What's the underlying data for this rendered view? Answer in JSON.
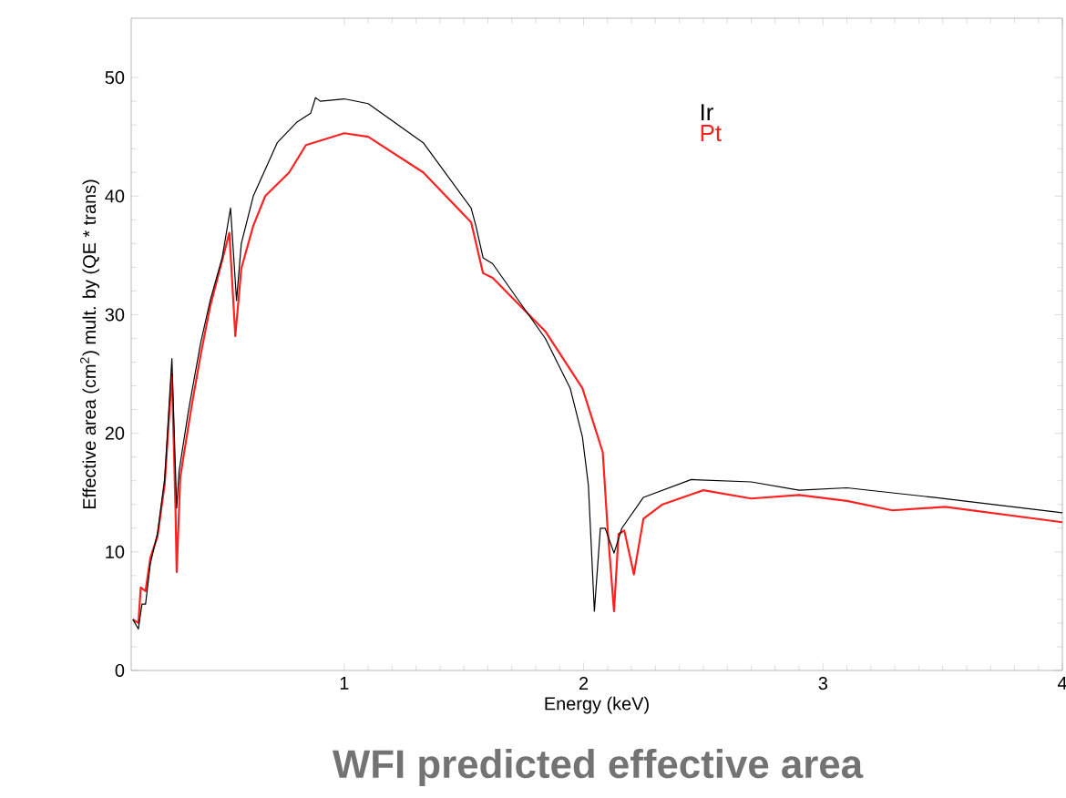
{
  "chart_data": {
    "type": "line",
    "title": "WFI predicted effective area",
    "xlabel": "Energy (keV)",
    "ylabel": "Effective area (cm$^{2}$) mult. by (QE * trans)",
    "xlim": [
      0.11,
      4
    ],
    "ylim": [
      0,
      55
    ],
    "xticks": [
      1,
      2,
      3,
      4
    ],
    "yticks": [
      0,
      10,
      20,
      30,
      40,
      50
    ],
    "legend": "top right",
    "grid": false,
    "marker": "none",
    "line_style": "solid",
    "series": [
      {
        "name": "Ir",
        "color": "#000000",
        "x": [
          0.117,
          0.14,
          0.155,
          0.17,
          0.19,
          0.22,
          0.25,
          0.28,
          0.3,
          0.31,
          0.35,
          0.4,
          0.44,
          0.49,
          0.525,
          0.55,
          0.57,
          0.62,
          0.72,
          0.8,
          0.86,
          0.88,
          0.9,
          1.0,
          1.1,
          1.33,
          1.53,
          1.55,
          1.58,
          1.62,
          1.84,
          1.944,
          1.995,
          2.02,
          2.045,
          2.07,
          2.09,
          2.127,
          2.16,
          2.25,
          2.45,
          2.7,
          2.9,
          3.1,
          3.46,
          4.0
        ],
        "values": [
          4.3,
          3.5,
          5.6,
          5.6,
          9.0,
          11.6,
          16.2,
          26.3,
          13.7,
          16.8,
          22,
          27.6,
          31.2,
          34.8,
          39.0,
          31.2,
          36,
          40,
          44.5,
          46.2,
          47,
          48.3,
          48.0,
          48.2,
          47.8,
          44.5,
          39,
          37.5,
          34.8,
          34.3,
          28,
          23.8,
          19.7,
          15.6,
          5.0,
          12.0,
          12,
          9.9,
          12,
          14.6,
          16.1,
          15.9,
          15.2,
          15.4,
          14.6,
          13.3
        ]
      },
      {
        "name": "Pt",
        "color": "#ff2020",
        "x": [
          0.117,
          0.14,
          0.15,
          0.17,
          0.19,
          0.22,
          0.25,
          0.28,
          0.295,
          0.3,
          0.315,
          0.36,
          0.4,
          0.44,
          0.52,
          0.545,
          0.57,
          0.62,
          0.67,
          0.77,
          0.84,
          1.0,
          1.1,
          1.33,
          1.53,
          1.58,
          1.62,
          1.84,
          1.995,
          2.08,
          2.1,
          2.127,
          2.146,
          2.17,
          2.21,
          2.25,
          2.33,
          2.5,
          2.7,
          2.9,
          3.1,
          3.29,
          3.51,
          4.0
        ],
        "values": [
          4.3,
          4.0,
          7.0,
          6.7,
          9.5,
          11.3,
          15.7,
          25,
          13.7,
          8.3,
          16.3,
          22,
          26.6,
          30.7,
          36.9,
          28.2,
          33.9,
          37.5,
          40,
          42,
          44.3,
          45.3,
          45,
          42,
          37.8,
          33.5,
          33.1,
          28.6,
          23.8,
          18.4,
          12,
          5.0,
          11.5,
          11.8,
          8.1,
          12.8,
          14.0,
          15.2,
          14.5,
          14.8,
          14.3,
          13.5,
          13.8,
          12.5
        ]
      }
    ]
  }
}
